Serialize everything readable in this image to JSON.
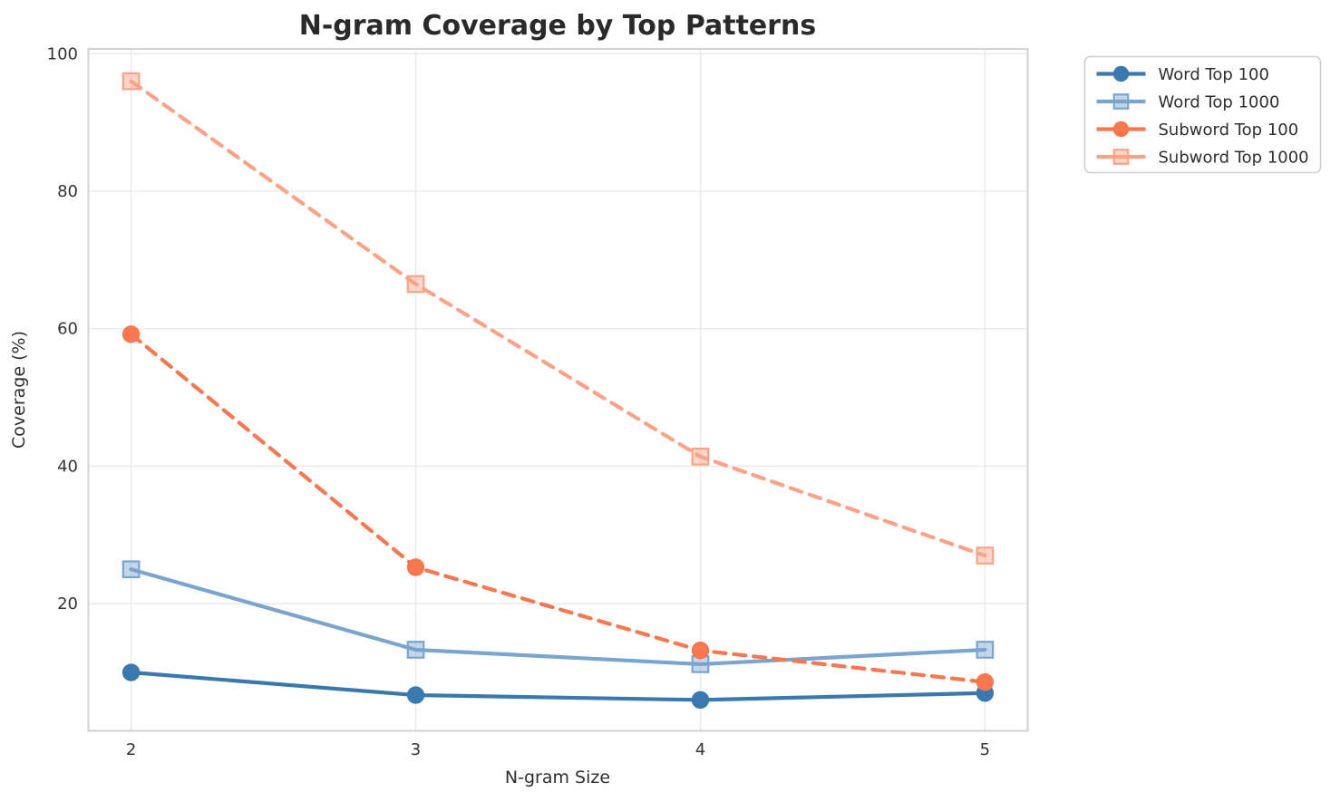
{
  "chart_data": {
    "type": "line",
    "title": "N-gram Coverage by Top Patterns",
    "xlabel": "N-gram Size",
    "ylabel": "Coverage (%)",
    "x": [
      2,
      3,
      4,
      5
    ],
    "xticks": [
      2,
      3,
      4,
      5
    ],
    "yticks": [
      20,
      40,
      60,
      80,
      100
    ],
    "xlim": [
      1.85,
      5.15
    ],
    "ylim": [
      1.5,
      100.7
    ],
    "grid": true,
    "legend_position": "upper-right-outside",
    "series": [
      {
        "name": "Word Top 100",
        "values": [
          10.0,
          6.7,
          6.0,
          7.0
        ],
        "color": "#3a78b0",
        "marker": "circle",
        "dash": "solid"
      },
      {
        "name": "Word Top 1000",
        "values": [
          25.0,
          13.3,
          11.2,
          13.3
        ],
        "color": "#7aa5d0",
        "marker": "square",
        "dash": "solid"
      },
      {
        "name": "Subword Top 100",
        "values": [
          59.2,
          25.3,
          13.2,
          8.6
        ],
        "color": "#f8774e",
        "marker": "circle",
        "dash": "dashed"
      },
      {
        "name": "Subword Top 1000",
        "values": [
          96.0,
          66.5,
          41.4,
          27.0
        ],
        "color": "#fba287",
        "marker": "square",
        "dash": "dashed"
      }
    ]
  },
  "colors": {
    "background": "#ffffff",
    "gridline": "#e9e9e9",
    "spine": "#d2d2d2",
    "text": "#2f2f2f",
    "legend_border": "#cfcfcf"
  }
}
